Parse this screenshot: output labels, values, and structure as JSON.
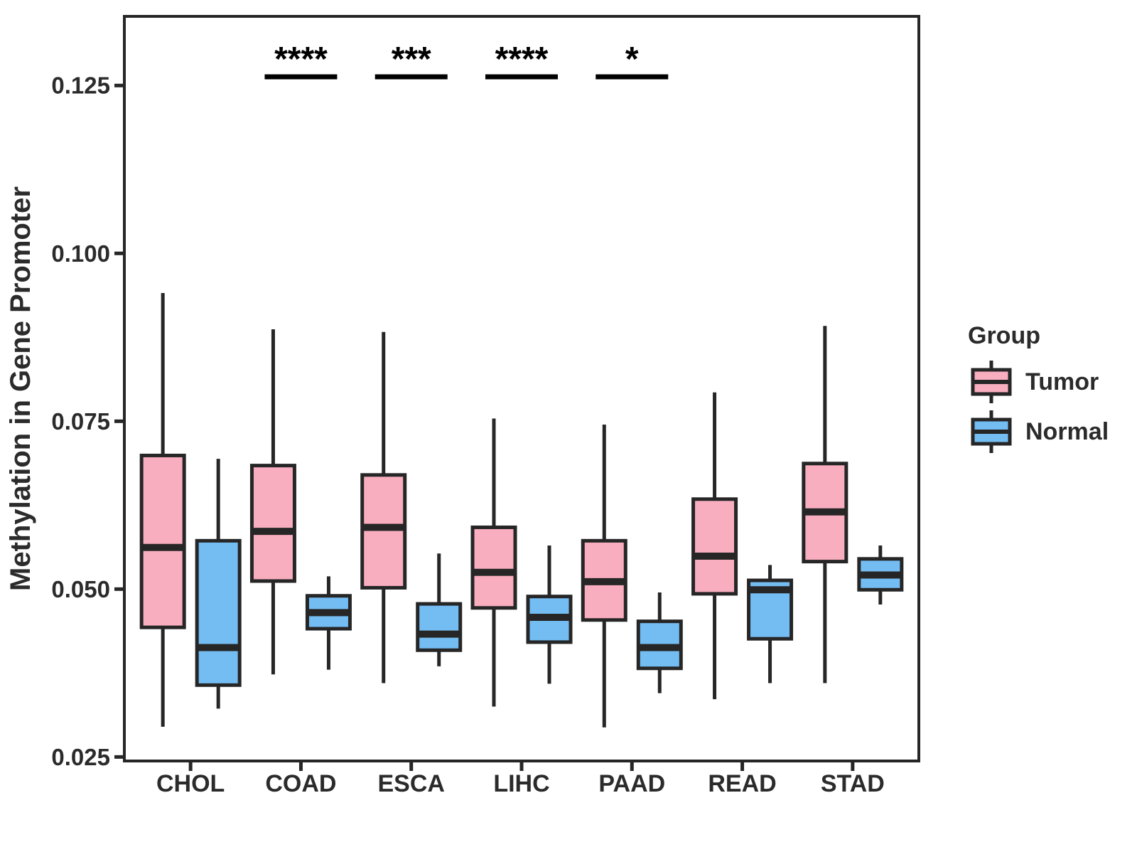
{
  "chart_data": {
    "type": "boxplot",
    "title": "",
    "ylabel": "Methylation in Gene Promoter",
    "xlabel": "",
    "categories": [
      "CHOL",
      "COAD",
      "ESCA",
      "LIHC",
      "PAAD",
      "READ",
      "STAD"
    ],
    "y_ticks": [
      0.025,
      0.05,
      0.075,
      0.1,
      0.125
    ],
    "y_tick_labels": [
      "0.025",
      "0.050",
      "0.075",
      "0.100",
      "0.125"
    ],
    "ylim": [
      0.0244,
      0.1353
    ],
    "grid": false,
    "legend_position": "right",
    "series": [
      {
        "name": "Tumor",
        "color": "#F9AEC0",
        "boxes": [
          {
            "category": "CHOL",
            "low": 0.0295,
            "q1": 0.0443,
            "median": 0.0562,
            "q3": 0.0699,
            "high": 0.0941
          },
          {
            "category": "COAD",
            "low": 0.0373,
            "q1": 0.0512,
            "median": 0.0586,
            "q3": 0.0684,
            "high": 0.0887
          },
          {
            "category": "ESCA",
            "low": 0.036,
            "q1": 0.0502,
            "median": 0.0592,
            "q3": 0.067,
            "high": 0.0883
          },
          {
            "category": "LIHC",
            "low": 0.0325,
            "q1": 0.0472,
            "median": 0.0525,
            "q3": 0.0592,
            "high": 0.0754
          },
          {
            "category": "PAAD",
            "low": 0.0294,
            "q1": 0.0454,
            "median": 0.0511,
            "q3": 0.0572,
            "high": 0.0745
          },
          {
            "category": "READ",
            "low": 0.0336,
            "q1": 0.0493,
            "median": 0.0549,
            "q3": 0.0634,
            "high": 0.0793
          },
          {
            "category": "STAD",
            "low": 0.036,
            "q1": 0.0541,
            "median": 0.0615,
            "q3": 0.0687,
            "high": 0.0892
          }
        ]
      },
      {
        "name": "Normal",
        "color": "#74BDF3",
        "boxes": [
          {
            "category": "CHOL",
            "low": 0.0322,
            "q1": 0.0357,
            "median": 0.0413,
            "q3": 0.0572,
            "high": 0.0694
          },
          {
            "category": "COAD",
            "low": 0.038,
            "q1": 0.0441,
            "median": 0.0465,
            "q3": 0.049,
            "high": 0.0519
          },
          {
            "category": "ESCA",
            "low": 0.0385,
            "q1": 0.0409,
            "median": 0.0433,
            "q3": 0.0478,
            "high": 0.0553
          },
          {
            "category": "LIHC",
            "low": 0.0359,
            "q1": 0.0421,
            "median": 0.0458,
            "q3": 0.0489,
            "high": 0.0565
          },
          {
            "category": "PAAD",
            "low": 0.0345,
            "q1": 0.0382,
            "median": 0.0413,
            "q3": 0.0452,
            "high": 0.0495
          },
          {
            "category": "READ",
            "low": 0.036,
            "q1": 0.0426,
            "median": 0.0499,
            "q3": 0.0513,
            "high": 0.0536
          },
          {
            "category": "STAD",
            "low": 0.0477,
            "q1": 0.0499,
            "median": 0.0521,
            "q3": 0.0545,
            "high": 0.0565
          }
        ]
      }
    ],
    "significance": [
      {
        "category": "COAD",
        "label": "****"
      },
      {
        "category": "ESCA",
        "label": "***"
      },
      {
        "category": "LIHC",
        "label": "****"
      },
      {
        "category": "PAAD",
        "label": "*"
      }
    ],
    "legend": {
      "title": "Group",
      "entries": [
        {
          "label": "Tumor",
          "color": "#F9AEC0"
        },
        {
          "label": "Normal",
          "color": "#74BDF3"
        }
      ]
    },
    "colors": {
      "tumor": "#F9AEC0",
      "normal": "#74BDF3",
      "stroke": "#262626",
      "text": "#2B2B2B",
      "background": "#FFFFFF"
    }
  }
}
